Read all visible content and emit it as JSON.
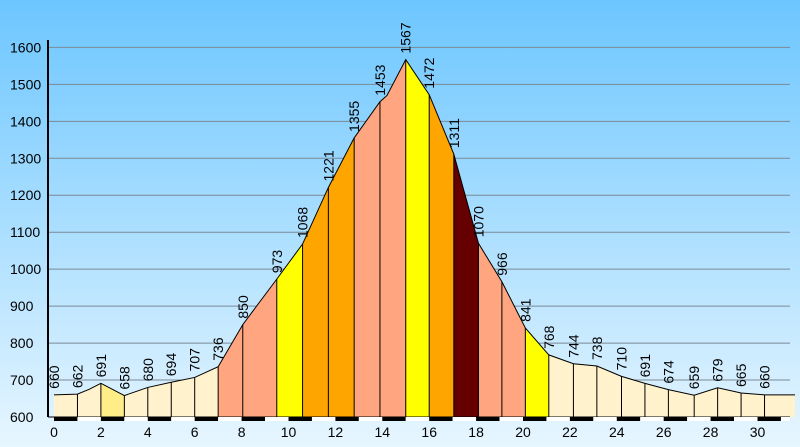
{
  "chart_data": {
    "type": "area",
    "title": "",
    "xlabel": "",
    "ylabel": "",
    "xlim": [
      0,
      31.6
    ],
    "ylim": [
      600,
      1620
    ],
    "y_ticks": [
      "600",
      "700",
      "800",
      "900",
      "1000",
      "1100",
      "1200",
      "1300",
      "1400",
      "1500",
      "1600"
    ],
    "x_ticks": [
      "0",
      "2",
      "4",
      "6",
      "8",
      "10",
      "12",
      "14",
      "16",
      "18",
      "20",
      "22",
      "24",
      "26",
      "28",
      "30"
    ],
    "grid": true,
    "background_gradient": [
      "#6cc6ff",
      "#e7f6ff"
    ],
    "points": [
      {
        "x": 0,
        "y": 660
      },
      {
        "x": 1,
        "y": 662
      },
      {
        "x": 1.5,
        "y": 675
      },
      {
        "x": 2,
        "y": 691
      },
      {
        "x": 3,
        "y": 658
      },
      {
        "x": 4,
        "y": 680
      },
      {
        "x": 5,
        "y": 694
      },
      {
        "x": 6,
        "y": 707
      },
      {
        "x": 7,
        "y": 736
      },
      {
        "x": 8.05,
        "y": 850
      },
      {
        "x": 9.5,
        "y": 973
      },
      {
        "x": 10.6,
        "y": 1068
      },
      {
        "x": 11.7,
        "y": 1221
      },
      {
        "x": 12.8,
        "y": 1355
      },
      {
        "x": 13.9,
        "y": 1453
      },
      {
        "x": 14.2,
        "y": 1470
      },
      {
        "x": 15.0,
        "y": 1567
      },
      {
        "x": 16.0,
        "y": 1472
      },
      {
        "x": 17.05,
        "y": 1311
      },
      {
        "x": 18.1,
        "y": 1070
      },
      {
        "x": 19.1,
        "y": 966
      },
      {
        "x": 20.1,
        "y": 841
      },
      {
        "x": 21.1,
        "y": 768
      },
      {
        "x": 22.15,
        "y": 744
      },
      {
        "x": 23.15,
        "y": 738
      },
      {
        "x": 24.2,
        "y": 710
      },
      {
        "x": 25.2,
        "y": 691
      },
      {
        "x": 26.2,
        "y": 674
      },
      {
        "x": 27.3,
        "y": 659
      },
      {
        "x": 28.3,
        "y": 679
      },
      {
        "x": 29.3,
        "y": 665
      },
      {
        "x": 30.3,
        "y": 660
      }
    ],
    "segments": [
      {
        "x0": 0,
        "x1": 1,
        "color": "#fff2cc"
      },
      {
        "x0": 1,
        "x1": 2,
        "color": "#fff2cc"
      },
      {
        "x0": 2,
        "x1": 3,
        "color": "#ffee88"
      },
      {
        "x0": 3,
        "x1": 4,
        "color": "#fff2cc"
      },
      {
        "x0": 4,
        "x1": 5,
        "color": "#fff2cc"
      },
      {
        "x0": 5,
        "x1": 6,
        "color": "#fff2cc"
      },
      {
        "x0": 6,
        "x1": 7,
        "color": "#fff2cc"
      },
      {
        "x0": 7,
        "x1": 8.05,
        "color": "#ffa680"
      },
      {
        "x0": 8.05,
        "x1": 9.5,
        "color": "#ffa680"
      },
      {
        "x0": 9.5,
        "x1": 10.6,
        "color": "#ffff00"
      },
      {
        "x0": 10.6,
        "x1": 11.7,
        "color": "#ffa500"
      },
      {
        "x0": 11.7,
        "x1": 12.8,
        "color": "#ffa500"
      },
      {
        "x0": 12.8,
        "x1": 13.9,
        "color": "#ffa680"
      },
      {
        "x0": 13.9,
        "x1": 15.0,
        "color": "#ffa680"
      },
      {
        "x0": 15.0,
        "x1": 16.0,
        "color": "#ffff00"
      },
      {
        "x0": 16.0,
        "x1": 17.05,
        "color": "#ffa500"
      },
      {
        "x0": 17.05,
        "x1": 18.1,
        "color": "#660000"
      },
      {
        "x0": 18.1,
        "x1": 19.1,
        "color": "#ffa680"
      },
      {
        "x0": 19.1,
        "x1": 20.1,
        "color": "#ffa680"
      },
      {
        "x0": 20.1,
        "x1": 21.1,
        "color": "#ffff00"
      },
      {
        "x0": 21.1,
        "x1": 22.15,
        "color": "#fff2cc"
      },
      {
        "x0": 22.15,
        "x1": 23.15,
        "color": "#fff2cc"
      },
      {
        "x0": 23.15,
        "x1": 24.2,
        "color": "#fff2cc"
      },
      {
        "x0": 24.2,
        "x1": 25.2,
        "color": "#fff2cc"
      },
      {
        "x0": 25.2,
        "x1": 26.2,
        "color": "#fff2cc"
      },
      {
        "x0": 26.2,
        "x1": 27.3,
        "color": "#fff2cc"
      },
      {
        "x0": 27.3,
        "x1": 28.3,
        "color": "#fff2cc"
      },
      {
        "x0": 28.3,
        "x1": 29.3,
        "color": "#fff2cc"
      },
      {
        "x0": 29.3,
        "x1": 30.3,
        "color": "#fff2cc"
      },
      {
        "x0": 30.3,
        "x1": 31.6,
        "color": "#fff2cc"
      }
    ],
    "labels": [
      {
        "x": 0,
        "text": "660"
      },
      {
        "x": 1,
        "text": "662"
      },
      {
        "x": 2,
        "text": "691"
      },
      {
        "x": 3,
        "text": "658"
      },
      {
        "x": 4,
        "text": "680"
      },
      {
        "x": 5,
        "text": "694"
      },
      {
        "x": 6,
        "text": "707"
      },
      {
        "x": 7,
        "text": "736"
      },
      {
        "x": 8.05,
        "text": "850"
      },
      {
        "x": 9.5,
        "text": "973"
      },
      {
        "x": 10.6,
        "text": "1068"
      },
      {
        "x": 11.7,
        "text": "1221"
      },
      {
        "x": 12.8,
        "text": "1355"
      },
      {
        "x": 13.9,
        "text": "1453"
      },
      {
        "x": 15.0,
        "text": "1567"
      },
      {
        "x": 16.0,
        "text": "1472"
      },
      {
        "x": 17.05,
        "text": "1311"
      },
      {
        "x": 18.1,
        "text": "1070"
      },
      {
        "x": 19.1,
        "text": "966"
      },
      {
        "x": 20.1,
        "text": "841"
      },
      {
        "x": 21.1,
        "text": "768"
      },
      {
        "x": 22.15,
        "text": "744"
      },
      {
        "x": 23.15,
        "text": "738"
      },
      {
        "x": 24.2,
        "text": "710"
      },
      {
        "x": 25.2,
        "text": "691"
      },
      {
        "x": 26.2,
        "text": "674"
      },
      {
        "x": 27.3,
        "text": "659"
      },
      {
        "x": 28.3,
        "text": "679"
      },
      {
        "x": 29.3,
        "text": "665"
      },
      {
        "x": 30.3,
        "text": "660"
      }
    ]
  }
}
